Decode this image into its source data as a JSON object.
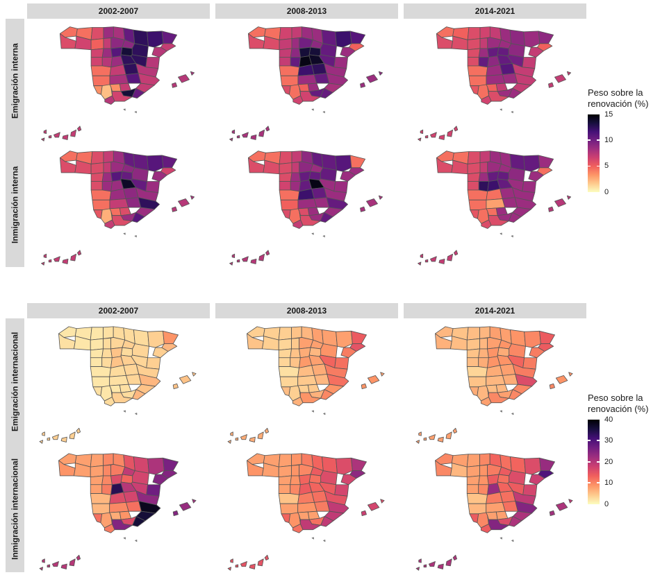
{
  "legends": {
    "top": {
      "line1": "Peso sobre la",
      "line2": "renovación (%)",
      "max": 15,
      "ticks": [
        0,
        5,
        10,
        15
      ]
    },
    "bottom": {
      "line1": "Peso sobre la",
      "line2": "renovación (%)",
      "max": 40,
      "ticks": [
        0,
        10,
        20,
        30,
        40
      ]
    }
  },
  "colors": {
    "background": "#ffffff",
    "strip_background": "#d9d9d9",
    "strip_text": "#1a1a1a",
    "province_border": "#555555",
    "legend_tick": "#ffffff",
    "palette_low_to_high": [
      "#fcfdbf",
      "#feca8d",
      "#fd9567",
      "#f1605d",
      "#cd4071",
      "#9f2f7f",
      "#721f81",
      "#451077",
      "#180f3e",
      "#000004"
    ]
  },
  "chart_data": {
    "type": "heatmap",
    "subtype": "faceted choropleth maps of Spain provinces (magma palette, reversed)",
    "legend_title": "Peso sobre la renovación (%)",
    "facet_columns": [
      "2002-2007",
      "2008-2013",
      "2014-2021"
    ],
    "facet_rows_top": [
      "Emigración interna",
      "Inmigración interna"
    ],
    "facet_rows_bottom": [
      "Emigración internacional",
      "Inmigración internacional"
    ],
    "scale_top": {
      "min": 0,
      "max": 15,
      "ticks": [
        0,
        5,
        10,
        15
      ]
    },
    "scale_bottom": {
      "min": 0,
      "max": 40,
      "ticks": [
        0,
        10,
        20,
        30,
        40
      ]
    },
    "regions": [
      "coruna",
      "lugo",
      "pontevedra",
      "ourense",
      "asturias",
      "cantabria",
      "basque",
      "navarra",
      "huesca",
      "lleida",
      "girona",
      "barcelona",
      "tarragona",
      "leon",
      "palencia",
      "burgos",
      "rioja",
      "zaragoza",
      "soria",
      "zamora",
      "valladolid",
      "segovia",
      "salamanca",
      "avila",
      "madrid",
      "guadalajara",
      "teruel",
      "castellon",
      "caceres",
      "toledo",
      "cuenca",
      "valencia",
      "badajoz",
      "ciudadreal",
      "albacete",
      "alicante",
      "murcia",
      "huelva",
      "sevilla",
      "cordoba",
      "jaen",
      "granada",
      "almeria",
      "malaga",
      "cadiz",
      "mallorca",
      "menorca",
      "ibiza",
      "canarias"
    ],
    "maps": [
      {
        "facet_row": "Emigración interna",
        "period": "2002-2007",
        "scale_max": 15,
        "values": [
          4.5,
          4.5,
          6,
          6.5,
          6,
          8.5,
          8,
          10.5,
          12.5,
          12,
          10.5,
          7,
          7.5,
          5,
          7,
          9,
          9,
          12.5,
          13.5,
          6.5,
          8.5,
          11,
          6.5,
          7.5,
          8.5,
          12.5,
          12.5,
          7.5,
          4.5,
          7,
          12.5,
          7.5,
          4.5,
          8,
          11,
          7,
          7,
          3.5,
          2,
          3.5,
          7,
          13.5,
          10.5,
          6.5,
          7.5,
          7.5,
          8,
          7.5,
          7
        ]
      },
      {
        "facet_row": "Emigración interna",
        "period": "2008-2013",
        "scale_max": 15,
        "values": [
          4.5,
          4.5,
          6,
          6,
          6.5,
          7,
          8.5,
          8.5,
          10.5,
          12,
          11,
          5,
          8.5,
          7,
          8.5,
          10,
          9,
          10.5,
          13.5,
          7,
          9,
          13.5,
          7,
          10.5,
          14.5,
          14,
          10.5,
          8.5,
          4.5,
          12,
          12.5,
          8.5,
          4.5,
          8.5,
          10.5,
          8.5,
          8,
          6,
          4.5,
          5,
          8.5,
          10.5,
          10.5,
          6.5,
          6.5,
          8.5,
          9,
          8.5,
          8
        ]
      },
      {
        "facet_row": "Emigración interna",
        "period": "2014-2021",
        "scale_max": 15,
        "values": [
          4.5,
          5,
          6,
          6,
          6,
          6.5,
          7,
          8.5,
          9,
          8.5,
          9,
          5,
          7,
          6,
          7,
          8.5,
          8.5,
          9,
          10.5,
          6,
          8.5,
          10.5,
          6,
          10.5,
          9,
          10.5,
          10,
          7,
          4.5,
          8.5,
          11,
          7,
          4.5,
          8.5,
          8.5,
          7,
          7,
          5.5,
          4.5,
          5,
          7,
          8.5,
          8.5,
          6,
          6.5,
          7,
          7,
          7,
          6.5
        ]
      },
      {
        "facet_row": "Inmigración interna",
        "period": "2002-2007",
        "scale_max": 15,
        "values": [
          4.5,
          4.5,
          6,
          6,
          6,
          7,
          8.5,
          10.5,
          10.5,
          11,
          10.5,
          6.5,
          8.5,
          6,
          7,
          8.5,
          9,
          9,
          10.5,
          6,
          8.5,
          11,
          6,
          8.5,
          8.5,
          14,
          10.5,
          8.5,
          4.5,
          8.5,
          9,
          8.5,
          4.5,
          7,
          9,
          12.5,
          8.5,
          5.5,
          2.5,
          4.5,
          6,
          8.5,
          11,
          6,
          7,
          7.5,
          8,
          7.5,
          7
        ]
      },
      {
        "facet_row": "Inmigración interna",
        "period": "2008-2013",
        "scale_max": 15,
        "values": [
          4.5,
          4.5,
          6,
          6,
          6,
          7,
          9,
          10.5,
          10.5,
          11,
          4.5,
          8.5,
          8.5,
          6,
          7,
          9,
          8.5,
          10.5,
          10.5,
          6,
          8.5,
          10.5,
          6.5,
          8.5,
          10.5,
          14.5,
          8.5,
          8.5,
          4.5,
          12,
          10.5,
          8.5,
          5,
          8.5,
          8.5,
          10.5,
          8.5,
          6,
          4.5,
          6,
          8.5,
          8.5,
          10.5,
          6,
          7,
          8,
          8,
          8,
          7.5
        ]
      },
      {
        "facet_row": "Inmigración interna",
        "period": "2014-2021",
        "scale_max": 15,
        "values": [
          4.5,
          4.5,
          6,
          6,
          6,
          7,
          8.5,
          8.5,
          10.5,
          10.5,
          8.5,
          4.5,
          8.5,
          6,
          7,
          8.5,
          8.5,
          9,
          10.5,
          6,
          8.5,
          10.5,
          6,
          12.5,
          12,
          10.5,
          8.5,
          8.5,
          4.5,
          4.5,
          8.5,
          8.5,
          4.5,
          3,
          8.5,
          8.5,
          8.5,
          5.5,
          4.5,
          4.5,
          8.5,
          8.5,
          8.5,
          6,
          6,
          7.5,
          7.5,
          7.5,
          7
        ]
      },
      {
        "facet_row": "Emigración internacional",
        "period": "2002-2007",
        "scale_max": 40,
        "values": [
          2,
          2,
          2.5,
          2,
          2,
          2.5,
          3,
          3,
          3,
          4,
          9,
          6,
          4,
          2,
          3,
          3.5,
          4,
          3.5,
          3,
          2,
          3,
          5,
          2,
          3,
          5,
          4,
          3.5,
          4,
          2,
          3,
          3.5,
          4,
          2,
          2.5,
          3.5,
          6,
          5,
          2.5,
          2,
          2,
          2.5,
          3,
          6,
          4,
          3,
          5,
          5,
          5,
          4
        ]
      },
      {
        "facet_row": "Emigración internacional",
        "period": "2008-2013",
        "scale_max": 40,
        "values": [
          4,
          4,
          5,
          4,
          4,
          5,
          6,
          8,
          8,
          8,
          14,
          15,
          11,
          3.5,
          4.5,
          8,
          8,
          9,
          6,
          3.5,
          5,
          7,
          3.5,
          5,
          8.5,
          8,
          13,
          12,
          2.5,
          5.5,
          7,
          11,
          3.5,
          4.5,
          6,
          12,
          9,
          5.5,
          4,
          4,
          4.5,
          6.5,
          10,
          9,
          6.5,
          9,
          8,
          9,
          7
        ]
      },
      {
        "facet_row": "Emigración internacional",
        "period": "2014-2021",
        "scale_max": 40,
        "values": [
          6,
          5,
          6.5,
          5.5,
          5.5,
          6,
          8,
          8,
          9,
          10,
          14,
          14,
          11,
          5,
          6,
          8,
          9,
          10,
          7,
          5,
          6.5,
          9,
          5.5,
          7,
          9,
          9,
          13,
          11,
          3.5,
          7,
          8,
          11,
          5,
          6,
          7,
          16,
          10,
          7,
          6,
          5.5,
          6,
          8,
          10,
          10,
          8,
          9,
          9,
          10,
          8
        ]
      },
      {
        "facet_row": "Inmigración internacional",
        "period": "2002-2007",
        "scale_max": 40,
        "values": [
          8,
          8,
          9,
          8,
          8,
          10,
          10,
          15,
          17,
          21,
          26,
          25,
          25,
          8,
          10,
          11,
          19,
          17,
          13,
          8,
          10,
          16,
          8,
          11,
          34,
          20,
          18,
          27,
          6,
          16,
          17,
          24,
          6,
          10,
          12,
          38,
          36,
          12,
          8,
          7,
          9,
          16,
          36,
          25,
          11,
          23,
          22,
          25,
          20
        ]
      },
      {
        "facet_row": "Inmigración internacional",
        "period": "2008-2013",
        "scale_max": 40,
        "values": [
          8,
          8,
          9,
          8,
          8,
          9,
          11,
          13,
          14,
          16,
          21,
          24,
          17,
          8,
          9,
          10,
          14,
          16,
          12,
          8,
          9,
          13,
          8,
          10,
          14,
          13,
          14,
          17,
          5,
          11,
          12,
          15,
          8,
          9,
          11,
          19,
          19,
          13,
          9,
          8,
          8,
          12,
          19,
          19,
          12,
          17,
          16,
          18,
          15
        ]
      },
      {
        "facet_row": "Inmigración internacional",
        "period": "2014-2021",
        "scale_max": 40,
        "values": [
          10,
          8,
          10,
          6,
          8,
          10,
          13,
          12,
          13,
          16,
          23,
          30,
          18,
          8,
          9,
          11,
          14,
          16,
          12,
          8,
          9,
          14,
          8,
          10,
          23,
          13,
          14,
          17,
          5,
          11,
          12,
          19,
          6,
          8,
          12,
          25,
          21,
          14,
          10,
          8,
          8,
          16,
          21,
          25,
          14,
          21,
          19,
          22,
          21
        ]
      }
    ]
  }
}
